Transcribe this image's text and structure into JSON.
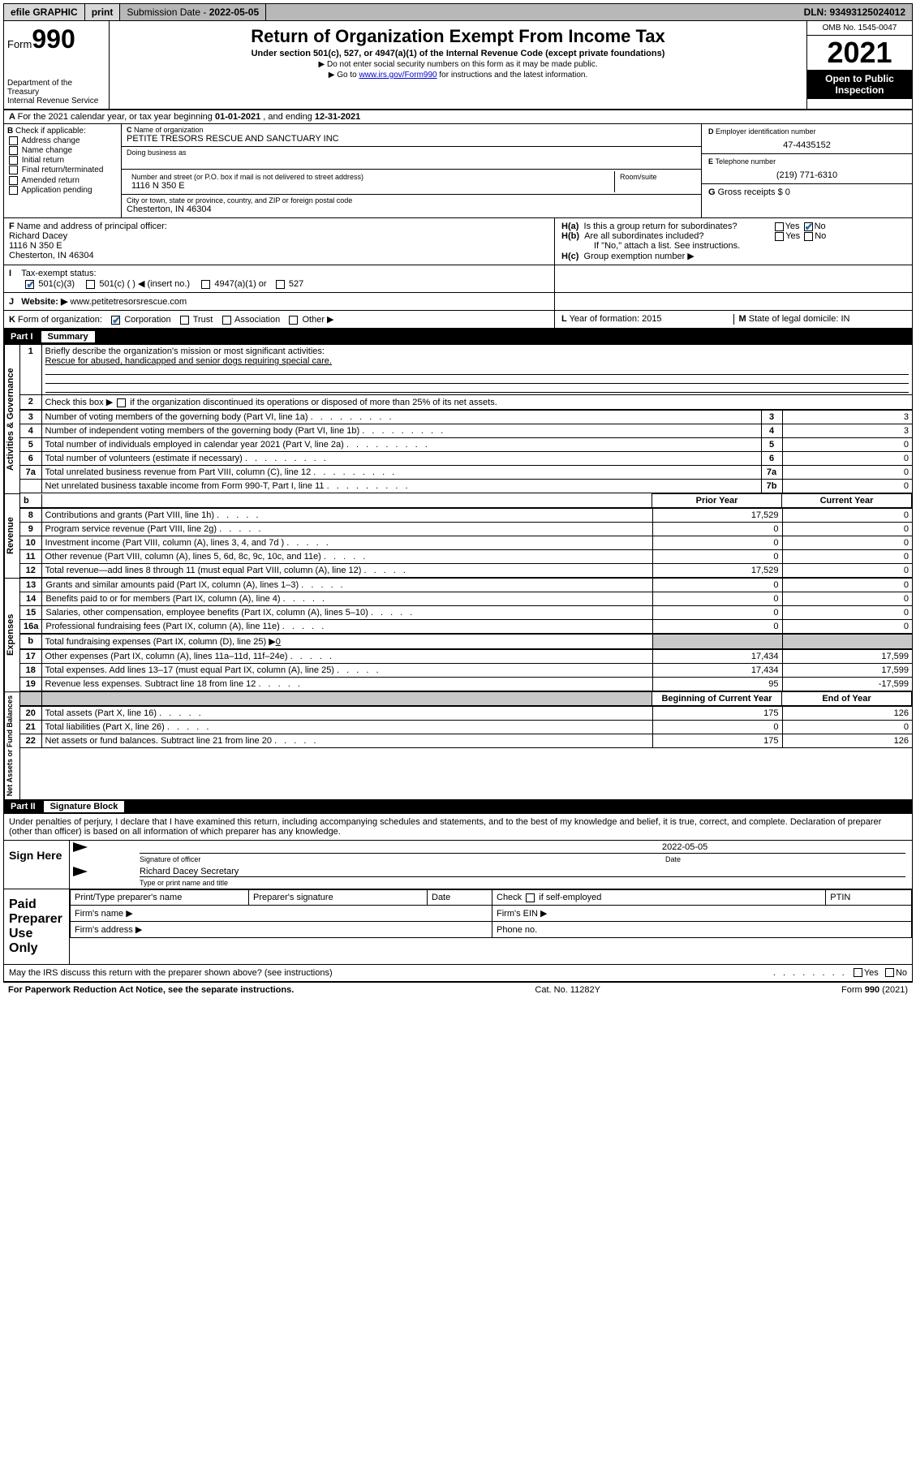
{
  "topbar": {
    "efile": "efile GRAPHIC",
    "print": "print",
    "sub_label": "Submission Date - ",
    "sub_date": "2022-05-05",
    "dln": "DLN: 93493125024012"
  },
  "header": {
    "form": "Form",
    "num": "990",
    "dept": "Department of the Treasury",
    "irs": "Internal Revenue Service",
    "title": "Return of Organization Exempt From Income Tax",
    "sub": "Under section 501(c), 527, or 4947(a)(1) of the Internal Revenue Code (except private foundations)",
    "note1": "▶ Do not enter social security numbers on this form as it may be made public.",
    "note2_a": "▶ Go to ",
    "note2_link": "www.irs.gov/Form990",
    "note2_b": " for instructions and the latest information.",
    "omb": "OMB No. 1545-0047",
    "year": "2021",
    "open": "Open to Public Inspection"
  },
  "rowA": {
    "text": "For the 2021 calendar year, or tax year beginning ",
    "begin": "01-01-2021",
    "mid": " , and ending ",
    "end": "12-31-2021"
  },
  "B": {
    "head": "Check if applicable:",
    "opts": [
      "Address change",
      "Name change",
      "Initial return",
      "Final return/terminated",
      "Amended return",
      "Application pending"
    ]
  },
  "C": {
    "name_lab": "Name of organization",
    "name": "PETITE TRESORS RESCUE AND SANCTUARY INC",
    "dba_lab": "Doing business as",
    "dba": "",
    "addr_lab": "Number and street (or P.O. box if mail is not delivered to street address)",
    "room_lab": "Room/suite",
    "addr": "1116 N 350 E",
    "city_lab": "City or town, state or province, country, and ZIP or foreign postal code",
    "city": "Chesterton, IN  46304"
  },
  "D": {
    "lab": "Employer identification number",
    "val": "47-4435152"
  },
  "E": {
    "lab": "Telephone number",
    "val": "(219) 771-6310"
  },
  "G": {
    "lab": "Gross receipts $",
    "val": "0"
  },
  "F": {
    "lab": "Name and address of principal officer:",
    "name": "Richard Dacey",
    "addr1": "1116 N 350 E",
    "addr2": "Chesterton, IN  46304"
  },
  "H": {
    "a": "Is this a group return for subordinates?",
    "b": "Are all subordinates included?",
    "note": "If \"No,\" attach a list. See instructions.",
    "c": "Group exemption number ▶",
    "yes": "Yes",
    "no": "No"
  },
  "I": {
    "lab": "Tax-exempt status:",
    "o1": "501(c)(3)",
    "o2": "501(c) (   ) ◀ (insert no.)",
    "o3": "4947(a)(1) or",
    "o4": "527"
  },
  "J": {
    "lab": "Website: ▶",
    "val": "www.petitetresorsrescue.com"
  },
  "K": {
    "lab": "Form of organization:",
    "o1": "Corporation",
    "o2": "Trust",
    "o3": "Association",
    "o4": "Other ▶"
  },
  "L": {
    "lab": "Year of formation:",
    "val": "2015"
  },
  "M": {
    "lab": "State of legal domicile:",
    "val": "IN"
  },
  "part1": {
    "num": "Part I",
    "title": "Summary"
  },
  "summary": {
    "q1": "Briefly describe the organization's mission or most significant activities:",
    "a1": "Rescue for abused, handicapped and senior dogs requiring special care.",
    "q2": "Check this box ▶        if the organization discontinued its operations or disposed of more than 25% of its net assets.",
    "rows": [
      {
        "n": "3",
        "t": "Number of voting members of the governing body (Part VI, line 1a)",
        "c": "3",
        "v": "3"
      },
      {
        "n": "4",
        "t": "Number of independent voting members of the governing body (Part VI, line 1b)",
        "c": "4",
        "v": "3"
      },
      {
        "n": "5",
        "t": "Total number of individuals employed in calendar year 2021 (Part V, line 2a)",
        "c": "5",
        "v": "0"
      },
      {
        "n": "6",
        "t": "Total number of volunteers (estimate if necessary)",
        "c": "6",
        "v": "0"
      },
      {
        "n": "7a",
        "t": "Total unrelated business revenue from Part VIII, column (C), line 12",
        "c": "7a",
        "v": "0"
      },
      {
        "n": "",
        "t": "Net unrelated business taxable income from Form 990-T, Part I, line 11",
        "c": "7b",
        "v": "0"
      }
    ],
    "head_prior": "Prior Year",
    "head_curr": "Current Year",
    "dbl": [
      {
        "n": "8",
        "t": "Contributions and grants (Part VIII, line 1h)",
        "p": "17,529",
        "c": "0"
      },
      {
        "n": "9",
        "t": "Program service revenue (Part VIII, line 2g)",
        "p": "0",
        "c": "0"
      },
      {
        "n": "10",
        "t": "Investment income (Part VIII, column (A), lines 3, 4, and 7d )",
        "p": "0",
        "c": "0"
      },
      {
        "n": "11",
        "t": "Other revenue (Part VIII, column (A), lines 5, 6d, 8c, 9c, 10c, and 11e)",
        "p": "0",
        "c": "0"
      },
      {
        "n": "12",
        "t": "Total revenue—add lines 8 through 11 (must equal Part VIII, column (A), line 12)",
        "p": "17,529",
        "c": "0"
      },
      {
        "n": "13",
        "t": "Grants and similar amounts paid (Part IX, column (A), lines 1–3)",
        "p": "0",
        "c": "0"
      },
      {
        "n": "14",
        "t": "Benefits paid to or for members (Part IX, column (A), line 4)",
        "p": "0",
        "c": "0"
      },
      {
        "n": "15",
        "t": "Salaries, other compensation, employee benefits (Part IX, column (A), lines 5–10)",
        "p": "0",
        "c": "0"
      },
      {
        "n": "16a",
        "t": "Professional fundraising fees (Part IX, column (A), line 11e)",
        "p": "0",
        "c": "0"
      }
    ],
    "fund_b": "Total fundraising expenses (Part IX, column (D), line 25) ▶",
    "fund_b_val": "0",
    "dbl2": [
      {
        "n": "17",
        "t": "Other expenses (Part IX, column (A), lines 11a–11d, 11f–24e)",
        "p": "17,434",
        "c": "17,599"
      },
      {
        "n": "18",
        "t": "Total expenses. Add lines 13–17 (must equal Part IX, column (A), line 25)",
        "p": "17,434",
        "c": "17,599"
      },
      {
        "n": "19",
        "t": "Revenue less expenses. Subtract line 18 from line 12",
        "p": "95",
        "c": "-17,599"
      }
    ],
    "head_beg": "Beginning of Current Year",
    "head_end": "End of Year",
    "dbl3": [
      {
        "n": "20",
        "t": "Total assets (Part X, line 16)",
        "p": "175",
        "c": "126"
      },
      {
        "n": "21",
        "t": "Total liabilities (Part X, line 26)",
        "p": "0",
        "c": "0"
      },
      {
        "n": "22",
        "t": "Net assets or fund balances. Subtract line 21 from line 20",
        "p": "175",
        "c": "126"
      }
    ],
    "side1": "Activities & Governance",
    "side2": "Revenue",
    "side3": "Expenses",
    "side4": "Net Assets or Fund Balances"
  },
  "part2": {
    "num": "Part II",
    "title": "Signature Block"
  },
  "sig": {
    "decl": "Under penalties of perjury, I declare that I have examined this return, including accompanying schedules and statements, and to the best of my knowledge and belief, it is true, correct, and complete. Declaration of preparer (other than officer) is based on all information of which preparer has any knowledge.",
    "sign_here": "Sign Here",
    "sig_officer": "Signature of officer",
    "date_lab": "Date",
    "date": "2022-05-05",
    "name": "Richard Dacey  Secretary",
    "name_lab": "Type or print name and title",
    "paid": "Paid Preparer Use Only",
    "pt_name": "Print/Type preparer's name",
    "pt_sig": "Preparer's signature",
    "pt_date": "Date",
    "pt_check": "Check        if self-employed",
    "ptin": "PTIN",
    "firm_name": "Firm's name   ▶",
    "firm_ein": "Firm's EIN ▶",
    "firm_addr": "Firm's address ▶",
    "phone": "Phone no.",
    "may": "May the IRS discuss this return with the preparer shown above? (see instructions)"
  },
  "footer": {
    "left": "For Paperwork Reduction Act Notice, see the separate instructions.",
    "mid": "Cat. No. 11282Y",
    "right": "Form 990 (2021)"
  }
}
